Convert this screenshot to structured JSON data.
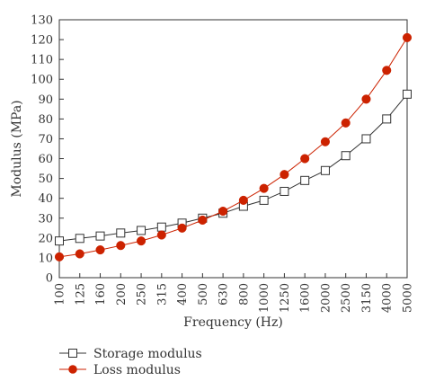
{
  "chart_data": {
    "type": "line",
    "xlabel": "Frequency (Hz)",
    "ylabel": "Modulus (MPa)",
    "categories": [
      "100",
      "125",
      "160",
      "200",
      "250",
      "315",
      "400",
      "500",
      "630",
      "800",
      "1000",
      "1250",
      "1600",
      "2000",
      "2500",
      "3150",
      "4000",
      "5000"
    ],
    "ylim": [
      0,
      130
    ],
    "yticks": [
      0,
      10,
      20,
      30,
      40,
      50,
      60,
      70,
      80,
      90,
      100,
      110,
      120,
      130
    ],
    "grid": false,
    "legend_placement": "bottom-left",
    "series": [
      {
        "name": "Storage modulus",
        "marker": "open-square",
        "color": "#333333",
        "values": [
          18.5,
          19.8,
          21.0,
          22.5,
          23.8,
          25.5,
          27.5,
          30.0,
          32.5,
          36.0,
          39.0,
          43.5,
          49.0,
          54.0,
          61.5,
          70.0,
          80.0,
          92.5
        ]
      },
      {
        "name": "Loss modulus",
        "marker": "filled-circle",
        "color": "#cc2200",
        "values": [
          10.5,
          12.0,
          14.0,
          16.2,
          18.5,
          21.5,
          25.0,
          29.0,
          33.5,
          39.0,
          45.0,
          52.0,
          60.0,
          68.5,
          78.0,
          90.0,
          104.5,
          121.0
        ]
      }
    ]
  }
}
